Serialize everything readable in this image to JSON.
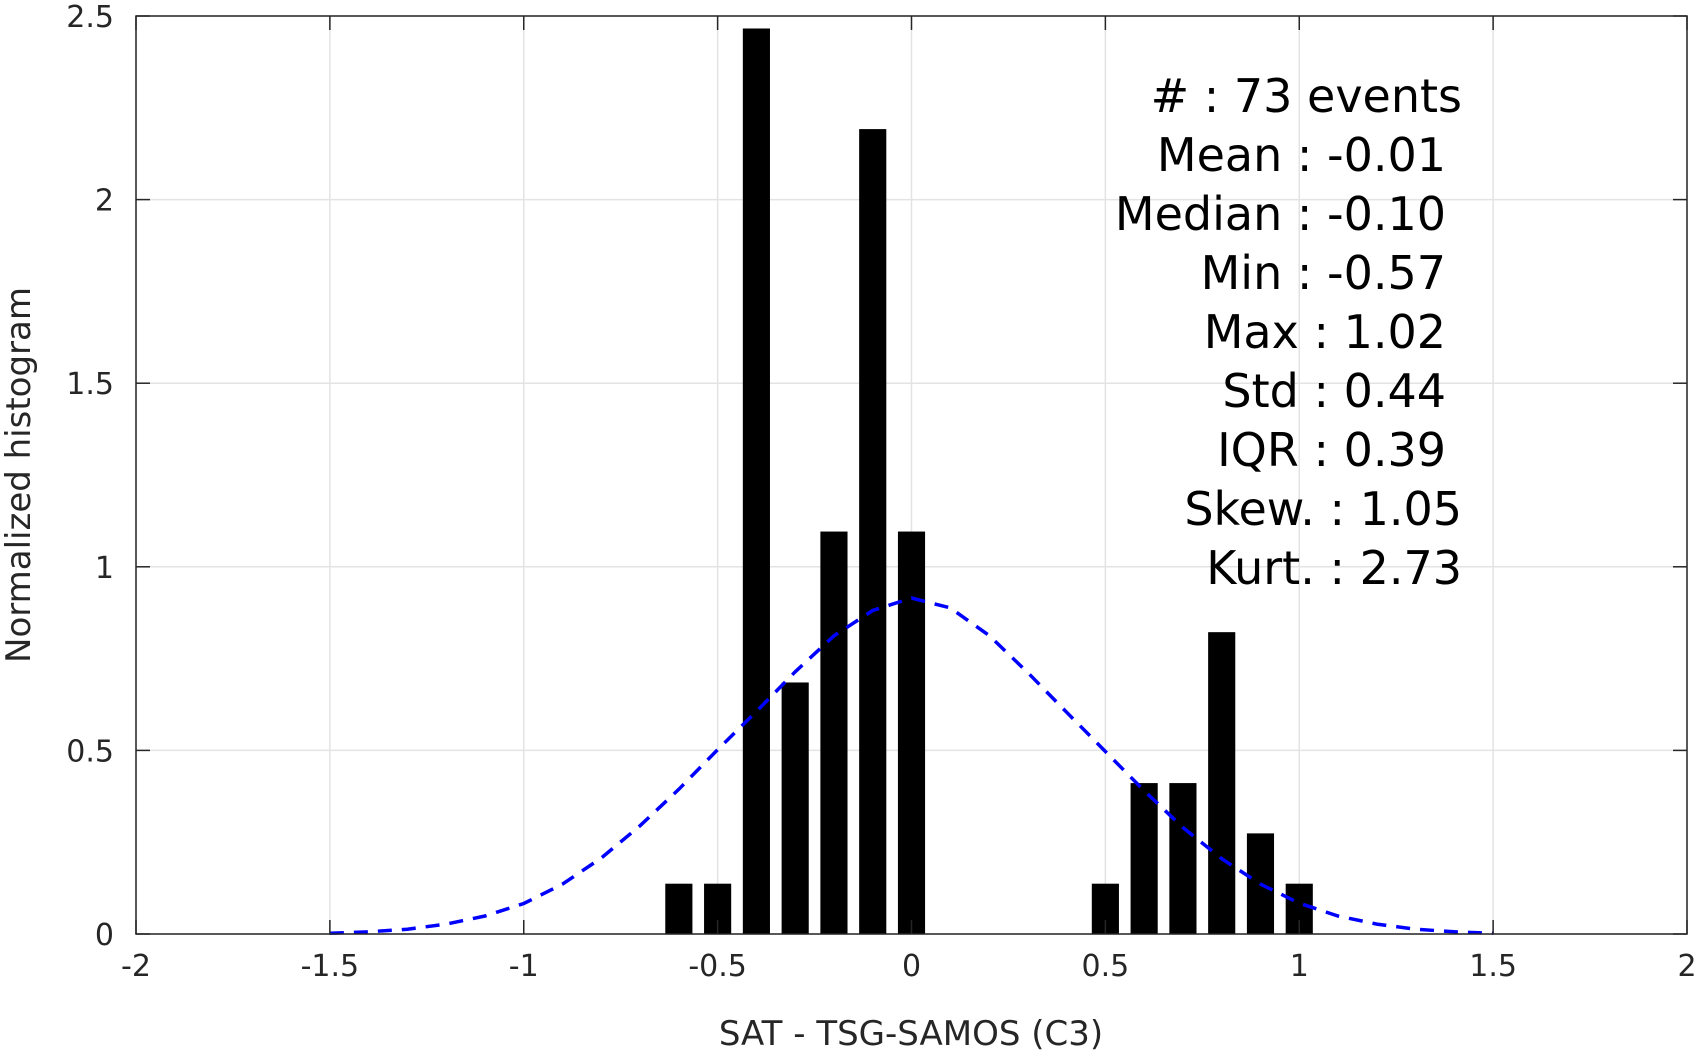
{
  "chart_data": {
    "type": "bar",
    "title": "",
    "xlabel": "SAT - TSG-SAMOS (C3)",
    "ylabel": "Normalized histogram",
    "xlim": [
      -2,
      2
    ],
    "ylim": [
      0,
      2.5
    ],
    "xticks": [
      "-2",
      "-1.5",
      "-1",
      "-0.5",
      "0",
      "0.5",
      "1",
      "1.5",
      "2"
    ],
    "yticks": [
      "0",
      "0.5",
      "1",
      "1.5",
      "2",
      "2.5"
    ],
    "grid": true,
    "bar_color": "#000000",
    "bar_width": 0.07,
    "bins": [
      {
        "x": -0.6,
        "y": 0.137
      },
      {
        "x": -0.5,
        "y": 0.137
      },
      {
        "x": -0.4,
        "y": 2.466
      },
      {
        "x": -0.3,
        "y": 0.685
      },
      {
        "x": -0.2,
        "y": 1.096
      },
      {
        "x": -0.1,
        "y": 2.192
      },
      {
        "x": 0.0,
        "y": 1.096
      },
      {
        "x": 0.5,
        "y": 0.137
      },
      {
        "x": 0.6,
        "y": 0.411
      },
      {
        "x": 0.7,
        "y": 0.411
      },
      {
        "x": 0.8,
        "y": 0.822
      },
      {
        "x": 0.9,
        "y": 0.274
      },
      {
        "x": 1.0,
        "y": 0.137
      }
    ],
    "fit_curve": {
      "style": "dashed",
      "color": "#0000ff",
      "x": [
        -1.5,
        -1.4,
        -1.3,
        -1.2,
        -1.1,
        -1.0,
        -0.9,
        -0.8,
        -0.7,
        -0.6,
        -0.5,
        -0.4,
        -0.3,
        -0.2,
        -0.1,
        0.0,
        0.1,
        0.2,
        0.3,
        0.4,
        0.5,
        0.6,
        0.7,
        0.8,
        0.9,
        1.0,
        1.1,
        1.2,
        1.3,
        1.4,
        1.5
      ],
      "y": [
        0.002,
        0.006,
        0.013,
        0.027,
        0.049,
        0.083,
        0.136,
        0.207,
        0.295,
        0.394,
        0.502,
        0.606,
        0.714,
        0.812,
        0.881,
        0.915,
        0.888,
        0.813,
        0.712,
        0.604,
        0.497,
        0.39,
        0.29,
        0.205,
        0.136,
        0.084,
        0.049,
        0.027,
        0.013,
        0.006,
        0.002
      ]
    },
    "stats_box": {
      "lines": [
        "#  : 73 events",
        "Mean : -0.01",
        "Median : -0.10",
        "Min : -0.57",
        "Max : 1.02",
        "Std : 0.44",
        "IQR : 0.39",
        "Skew. : 1.05",
        "Kurt. : 2.73"
      ],
      "placement": "top-right"
    }
  }
}
